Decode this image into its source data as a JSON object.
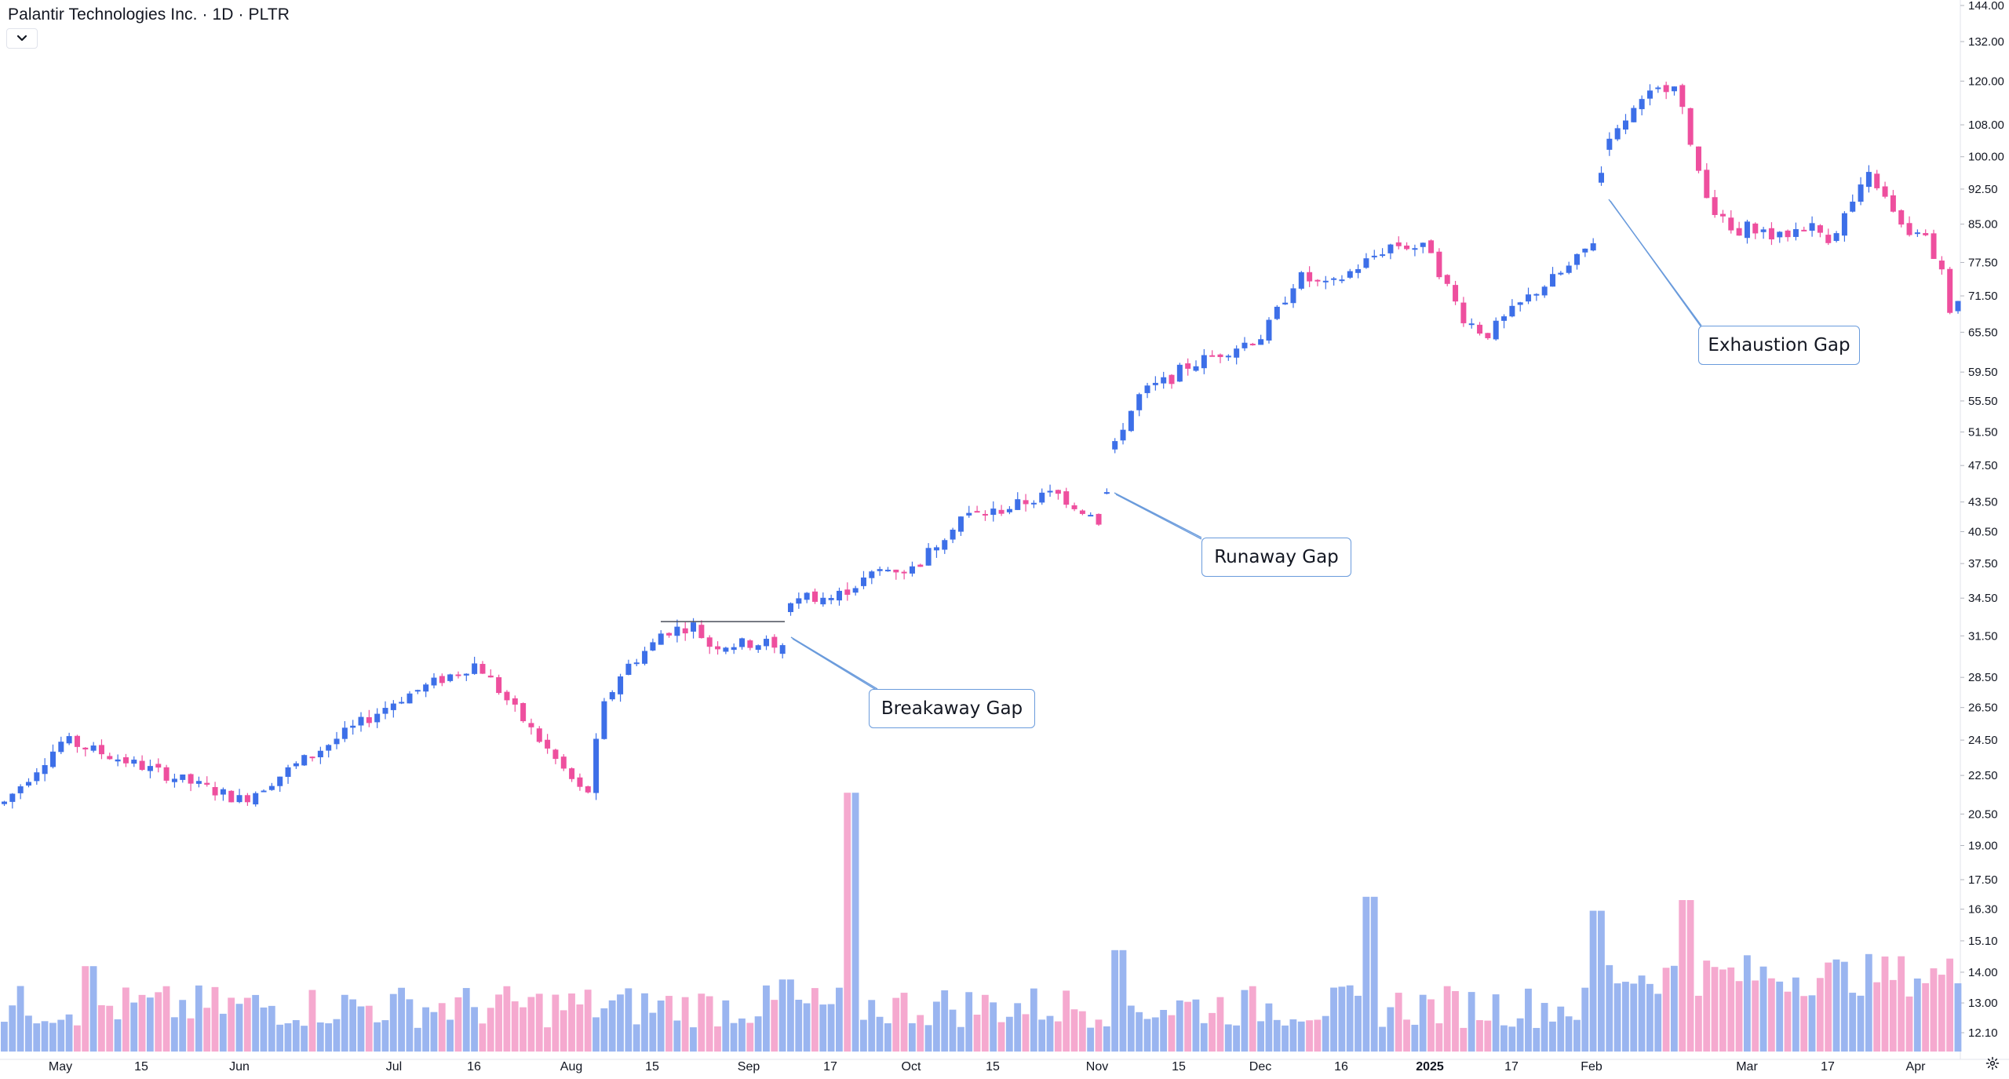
{
  "legend": {
    "title": "Palantir Technologies Inc. · 1D · PLTR"
  },
  "annotations": [
    {
      "id": "breakaway",
      "label": "Breakaway Gap"
    },
    {
      "id": "runaway",
      "label": "Runaway Gap"
    },
    {
      "id": "exhaustion",
      "label": "Exhaustion Gap"
    }
  ],
  "colors": {
    "up": "#3d6fe8",
    "down": "#ee4f9e",
    "vol_up": "#9ab5f0",
    "vol_down": "#f5a9cf",
    "axis_text": "#131722",
    "grid": "#e9ecf2",
    "annotation_border": "#6a9bdc"
  },
  "icons": {
    "toggle": "chevron-down-icon",
    "settings": "gear-icon"
  },
  "chart_data": {
    "type": "candlestick",
    "title": "Palantir Technologies Inc. · 1D · PLTR",
    "price_axis": {
      "scale": "log",
      "ticks": [
        "144.00",
        "132.00",
        "120.00",
        "108.00",
        "100.00",
        "92.50",
        "85.00",
        "77.50",
        "71.50",
        "65.50",
        "59.50",
        "55.50",
        "51.50",
        "47.50",
        "43.50",
        "40.50",
        "37.50",
        "34.50",
        "31.50",
        "28.50",
        "26.50",
        "24.50",
        "22.50",
        "20.50",
        "19.00",
        "17.50",
        "16.30",
        "15.10",
        "14.00",
        "13.00",
        "12.10"
      ]
    },
    "time_axis": {
      "ticks": [
        "May",
        "15",
        "Jun",
        "Jul",
        "16",
        "Aug",
        "15",
        "Sep",
        "17",
        "Oct",
        "15",
        "Nov",
        "15",
        "Dec",
        "16",
        "2025",
        "17",
        "Feb",
        "Mar",
        "17",
        "Apr"
      ],
      "bold": [
        "2025"
      ]
    },
    "grid": false,
    "series": [
      {
        "name": "PLTR",
        "type": "ohlc",
        "approximate_anchors": [
          [
            "May",
            21.0
          ],
          [
            "mid-May",
            24.5
          ],
          [
            "Jun",
            21.2
          ],
          [
            "Jul",
            27.0
          ],
          [
            "mid-Jul",
            29.5
          ],
          [
            "Aug",
            21.5
          ],
          [
            "mid-Aug",
            31.0
          ],
          [
            "Sep",
            31.0
          ],
          [
            "mid-Sep",
            34.5
          ],
          [
            "Oct",
            37.0
          ],
          [
            "mid-Oct",
            42.5
          ],
          [
            "Nov",
            41.5
          ],
          [
            "mid-Nov",
            60.0
          ],
          [
            "Dec",
            65.0
          ],
          [
            "mid-Dec",
            75.0
          ],
          [
            "2025",
            80.0
          ],
          [
            "mid-Jan",
            65.0
          ],
          [
            "Feb",
            82.0
          ],
          [
            "mid-Feb",
            120.0
          ],
          [
            "Mar",
            85.0
          ],
          [
            "mid-Mar",
            82.0
          ],
          [
            "Apr",
            73.0
          ]
        ]
      },
      {
        "name": "Volume",
        "type": "bar"
      }
    ]
  }
}
